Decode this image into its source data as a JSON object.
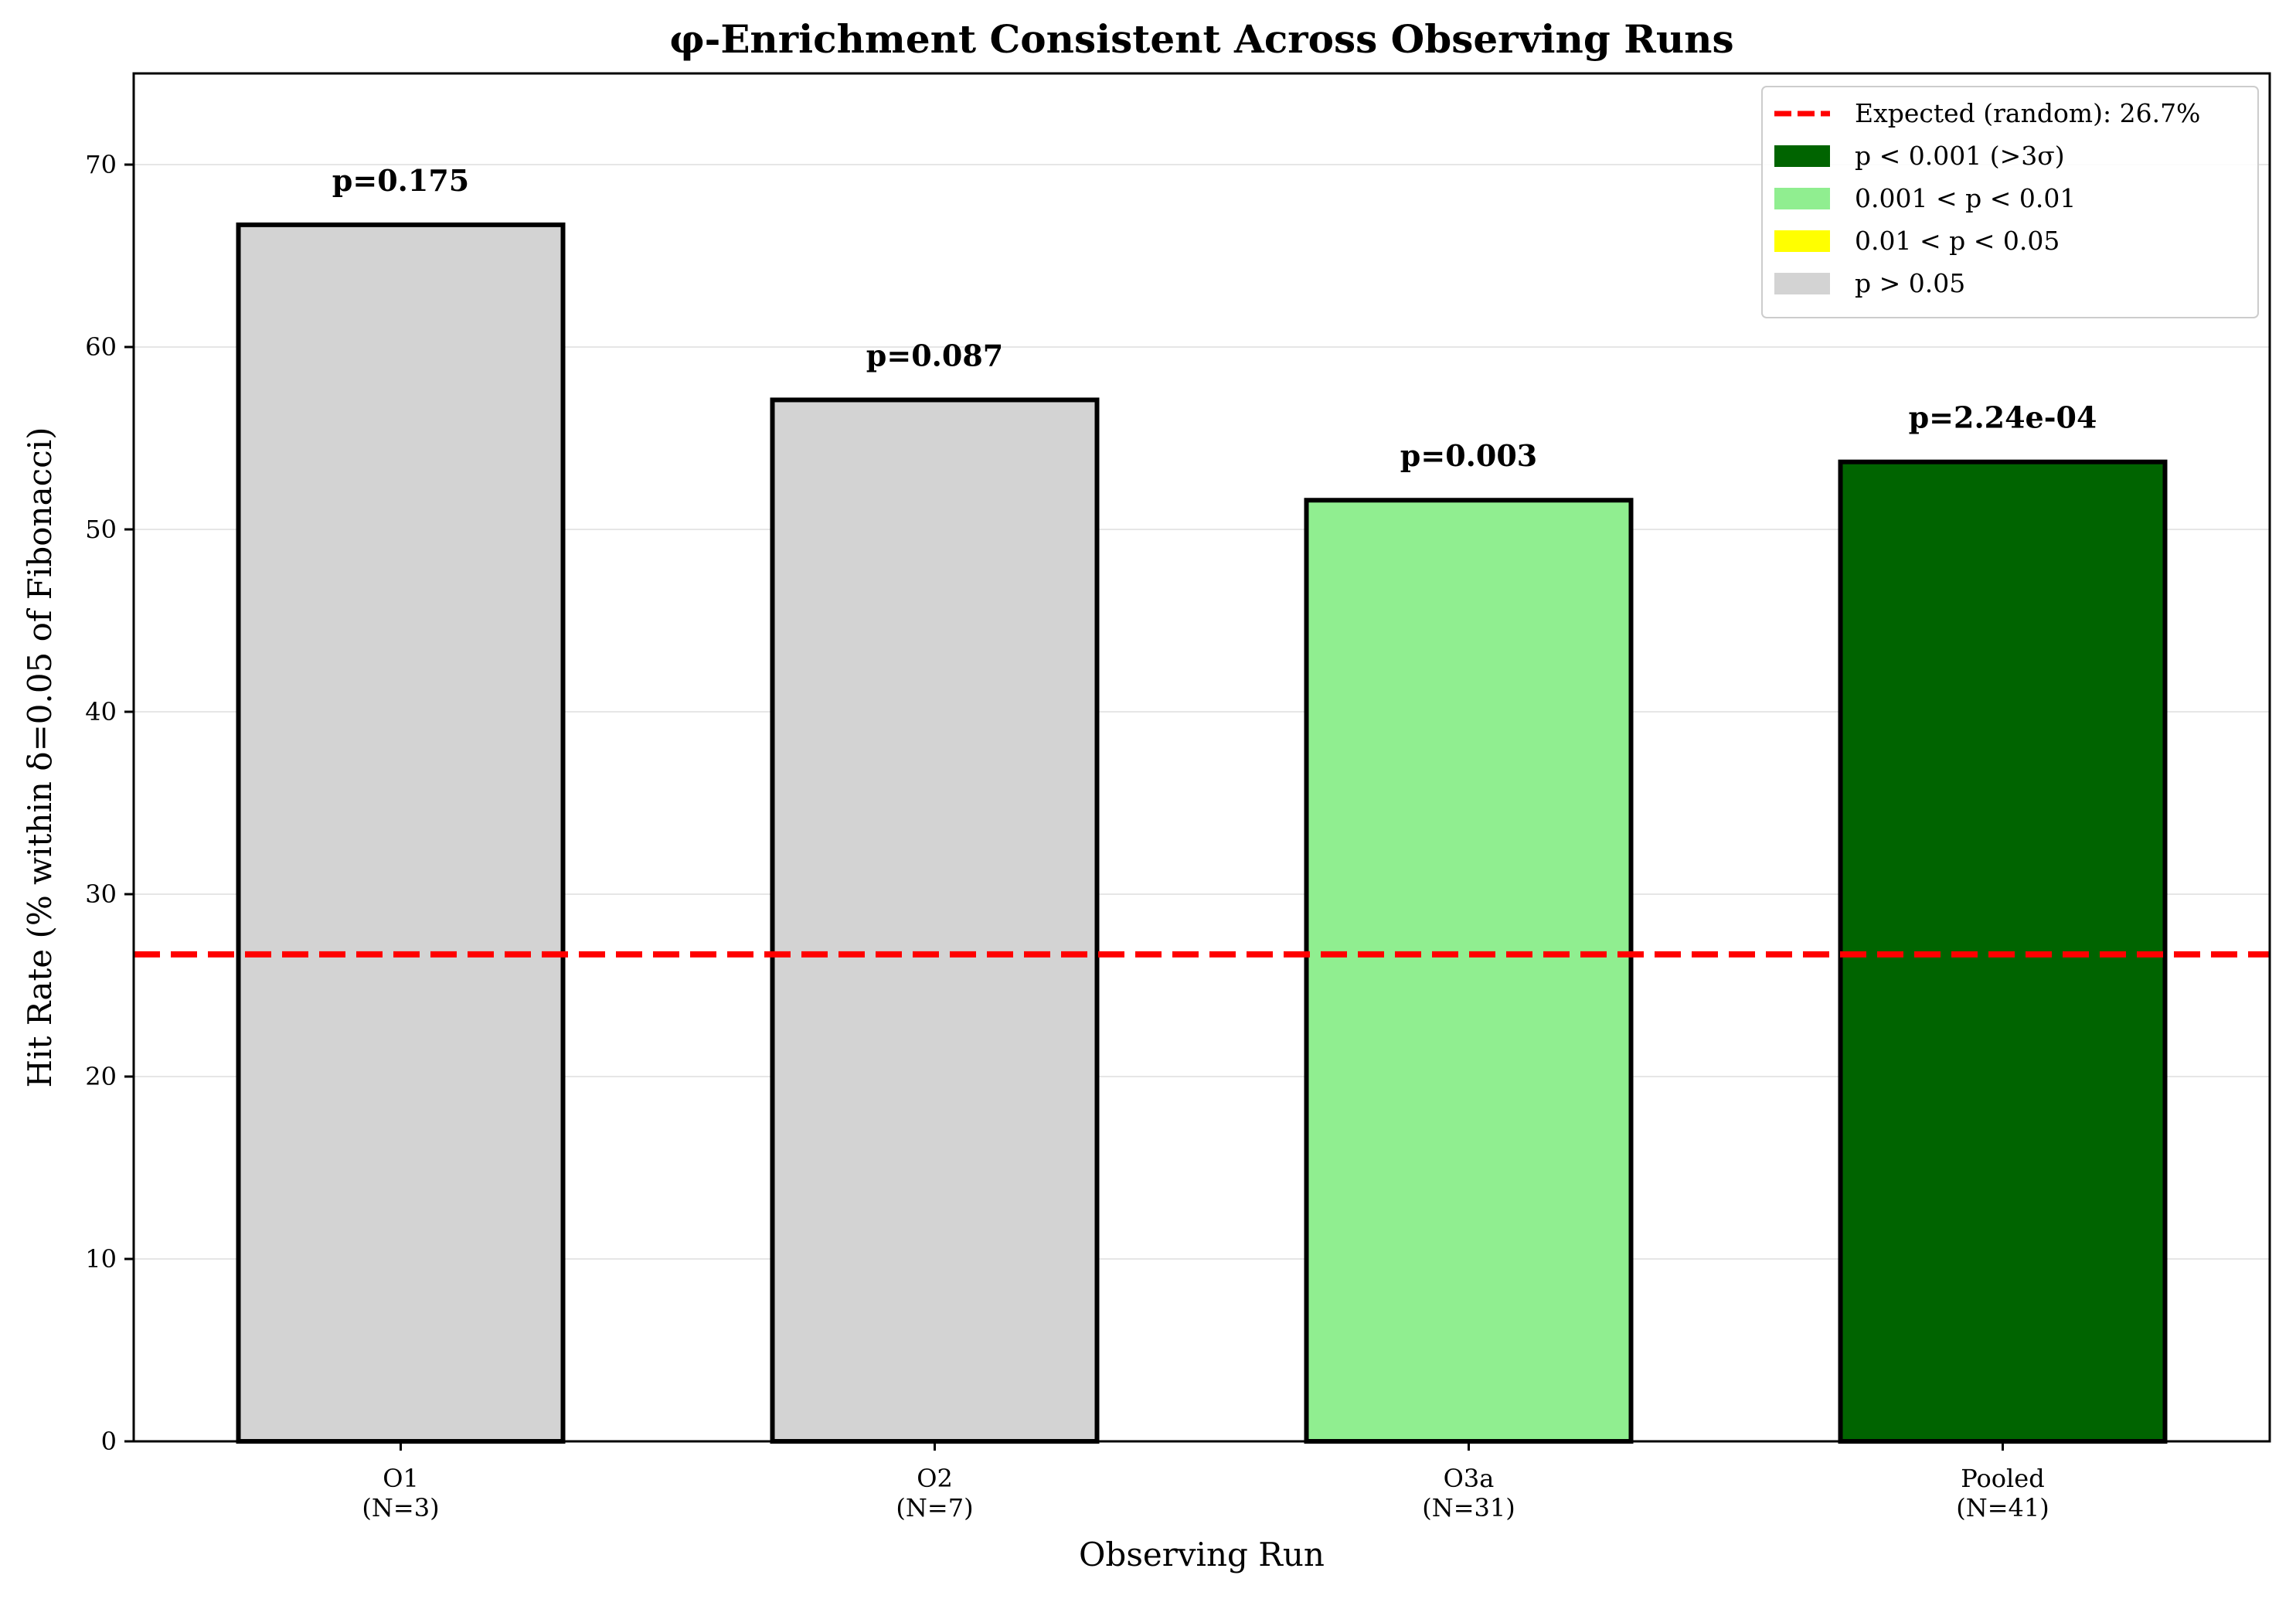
{
  "chart_data": {
    "type": "bar",
    "title": "φ-Enrichment Consistent Across Observing Runs",
    "xlabel": "Observing Run",
    "ylabel": "Hit Rate (% within δ=0.05 of Fibonacci)",
    "ylim": [
      0,
      75
    ],
    "yticks": [
      0,
      10,
      20,
      30,
      40,
      50,
      60,
      70
    ],
    "grid": "horizontal",
    "legend_position": "top-right",
    "categories": [
      {
        "line1": "O1",
        "line2": "(N=3)"
      },
      {
        "line1": "O2",
        "line2": "(N=7)"
      },
      {
        "line1": "O3a",
        "line2": "(N=31)"
      },
      {
        "line1": "Pooled",
        "line2": "(N=41)"
      }
    ],
    "values": [
      66.7,
      57.1,
      51.6,
      53.7
    ],
    "bar_labels": [
      "p=0.175",
      "p=0.087",
      "p=0.003",
      "p=2.24e-04"
    ],
    "bar_colors": [
      "#d3d3d3",
      "#d3d3d3",
      "#90ee90",
      "#006400"
    ],
    "reference_line": {
      "value": 26.7,
      "label": "Expected (random): 26.7%",
      "color": "#ff0000"
    },
    "legend": [
      {
        "label": "Expected (random): 26.7%",
        "kind": "line",
        "color": "#ff0000"
      },
      {
        "label": "p < 0.001 (>3σ)",
        "kind": "patch",
        "color": "#006400"
      },
      {
        "label": "0.001 < p < 0.01",
        "kind": "patch",
        "color": "#90ee90"
      },
      {
        "label": "0.01 < p < 0.05",
        "kind": "patch",
        "color": "#ffff00"
      },
      {
        "label": "p > 0.05",
        "kind": "patch",
        "color": "#d3d3d3"
      }
    ]
  }
}
